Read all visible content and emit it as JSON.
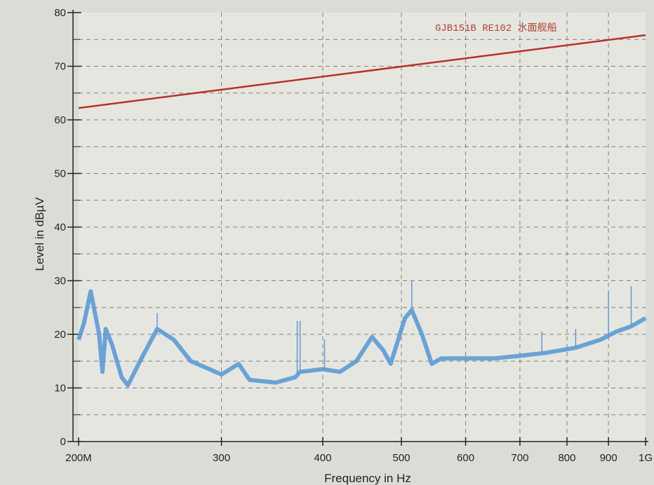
{
  "chart_data": {
    "type": "line",
    "title": "",
    "xlabel": "Frequency in Hz",
    "ylabel": "Level in dBµV",
    "x_scale": "log",
    "xlim": [
      200,
      1000
    ],
    "ylim": [
      0,
      80
    ],
    "x_tick_values": [
      200,
      300,
      400,
      500,
      600,
      700,
      800,
      900,
      1000
    ],
    "x_tick_labels": [
      "200M",
      "300",
      "400",
      "500",
      "600",
      "700",
      "800",
      "900",
      "1G"
    ],
    "y_ticks": [
      0,
      10,
      20,
      30,
      40,
      50,
      60,
      70,
      80
    ],
    "grid": true,
    "legend": "top-right",
    "series": [
      {
        "name": "GJB151B RE102 水面舰船",
        "color": "#b83228",
        "x": [
          200,
          1000
        ],
        "y": [
          62.2,
          75.8
        ]
      },
      {
        "color": "#5b9bd5",
        "x": [
          200,
          203,
          207,
          212,
          214,
          216,
          220,
          226,
          230,
          240,
          250,
          262,
          275,
          290,
          300,
          315,
          325,
          350,
          370,
          375,
          400,
          420,
          440,
          460,
          475,
          485,
          505,
          515,
          530,
          545,
          560,
          600,
          650,
          700,
          750,
          820,
          880,
          920,
          960,
          1000
        ],
        "y": [
          19,
          22,
          28,
          20,
          13,
          21,
          18,
          12,
          10.5,
          16,
          21,
          19,
          15,
          13.5,
          12.5,
          14.5,
          11.5,
          11,
          12,
          13,
          13.5,
          13,
          15,
          19.5,
          17,
          14.5,
          23,
          24.5,
          20,
          14.5,
          15.5,
          15.5,
          15.5,
          16,
          16.5,
          17.5,
          19,
          20.5,
          21.5,
          23
        ],
        "spikes": [
          [
            250,
            24
          ],
          [
            372,
            22.5
          ],
          [
            375,
            22.5
          ],
          [
            402,
            19
          ],
          [
            515,
            30
          ],
          [
            745,
            20.5
          ],
          [
            820,
            21
          ],
          [
            900,
            28
          ],
          [
            960,
            29
          ]
        ]
      }
    ]
  }
}
